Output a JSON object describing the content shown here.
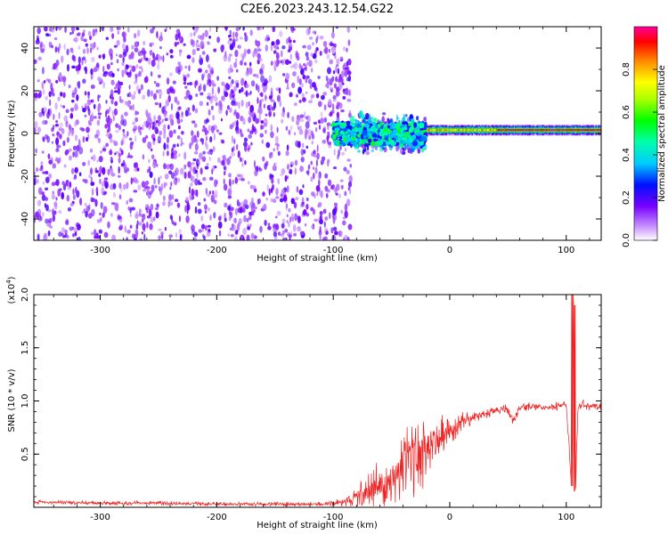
{
  "figure_title": "C2E6.2023.243.12.54.G22",
  "chart_data": [
    {
      "type": "heatmap",
      "xlabel": "Height of straight line (km)",
      "ylabel": "Frequency (Hz)",
      "xlim": [
        -357,
        130
      ],
      "ylim": [
        -50,
        50
      ],
      "xticks": [
        -300,
        -200,
        -100,
        0,
        100
      ],
      "xtick_labels": [
        "-300",
        "-200",
        "-100",
        "0",
        "100"
      ],
      "yticks": [
        -40,
        -20,
        0,
        20,
        40
      ],
      "ytick_labels": [
        "-40",
        "-20",
        "0",
        "20",
        "40"
      ],
      "colorbar": {
        "label": "Normalized spectral amplitude",
        "range": [
          0,
          1
        ],
        "ticks": [
          0.0,
          0.2,
          0.4,
          0.6,
          0.8
        ],
        "tick_labels": [
          "0.0",
          "0.2",
          "0.4",
          "0.6",
          "0.8"
        ]
      },
      "regions": [
        {
          "x_range": [
            -357,
            -85
          ],
          "freq_range": [
            -50,
            50
          ],
          "amplitude_range": [
            0.05,
            0.2
          ],
          "description_level": "broadband"
        },
        {
          "x_range": [
            -85,
            -20
          ],
          "freq_range": [
            -10,
            10
          ],
          "amplitude_range": [
            0.1,
            0.5
          ]
        },
        {
          "x_range": [
            -20,
            130
          ],
          "freq_range": [
            -2,
            4
          ],
          "peak_frequency": 1,
          "amplitude_range": [
            0.4,
            1.0
          ]
        }
      ]
    },
    {
      "type": "line",
      "xlabel": "Height of straight line (km)",
      "ylabel": "SNR (10 * v/v)",
      "yscale_label": "(x10",
      "yscale_exp": "4",
      "yscale_close": ")",
      "xlim": [
        -357,
        130
      ],
      "ylim": [
        0,
        2.0
      ],
      "xticks": [
        -300,
        -200,
        -100,
        0,
        100
      ],
      "xtick_labels": [
        "-300",
        "-200",
        "-100",
        "0",
        "100"
      ],
      "yticks": [
        0.5,
        1.0,
        1.5,
        2.0
      ],
      "ytick_labels": [
        "0.5",
        "1.0",
        "1.5",
        "2.0"
      ],
      "series": [
        {
          "color": "#ee2222",
          "x": [
            -357,
            -300,
            -250,
            -200,
            -150,
            -110,
            -100,
            -90,
            -80,
            -70,
            -60,
            -50,
            -40,
            -30,
            -20,
            -10,
            0,
            10,
            20,
            30,
            40,
            50,
            55,
            60,
            70,
            80,
            90,
            100,
            104,
            106,
            108,
            110,
            120,
            130
          ],
          "y": [
            0.05,
            0.04,
            0.04,
            0.03,
            0.03,
            0.03,
            0.04,
            0.05,
            0.1,
            0.15,
            0.22,
            0.3,
            0.4,
            0.45,
            0.55,
            0.65,
            0.72,
            0.8,
            0.85,
            0.88,
            0.91,
            0.93,
            0.8,
            0.94,
            0.95,
            0.94,
            0.95,
            0.96,
            0.3,
            2.0,
            0.15,
            0.96,
            0.96,
            0.95
          ],
          "noise": [
            0.02,
            0.02,
            0.02,
            0.02,
            0.02,
            0.02,
            0.03,
            0.05,
            0.1,
            0.18,
            0.25,
            0.3,
            0.35,
            0.35,
            0.35,
            0.25,
            0.15,
            0.1,
            0.06,
            0.05,
            0.04,
            0.05,
            0.05,
            0.04,
            0.04,
            0.04,
            0.04,
            0.04,
            0.05,
            0.05,
            0.05,
            0.05,
            0.05,
            0.05
          ]
        }
      ]
    }
  ]
}
